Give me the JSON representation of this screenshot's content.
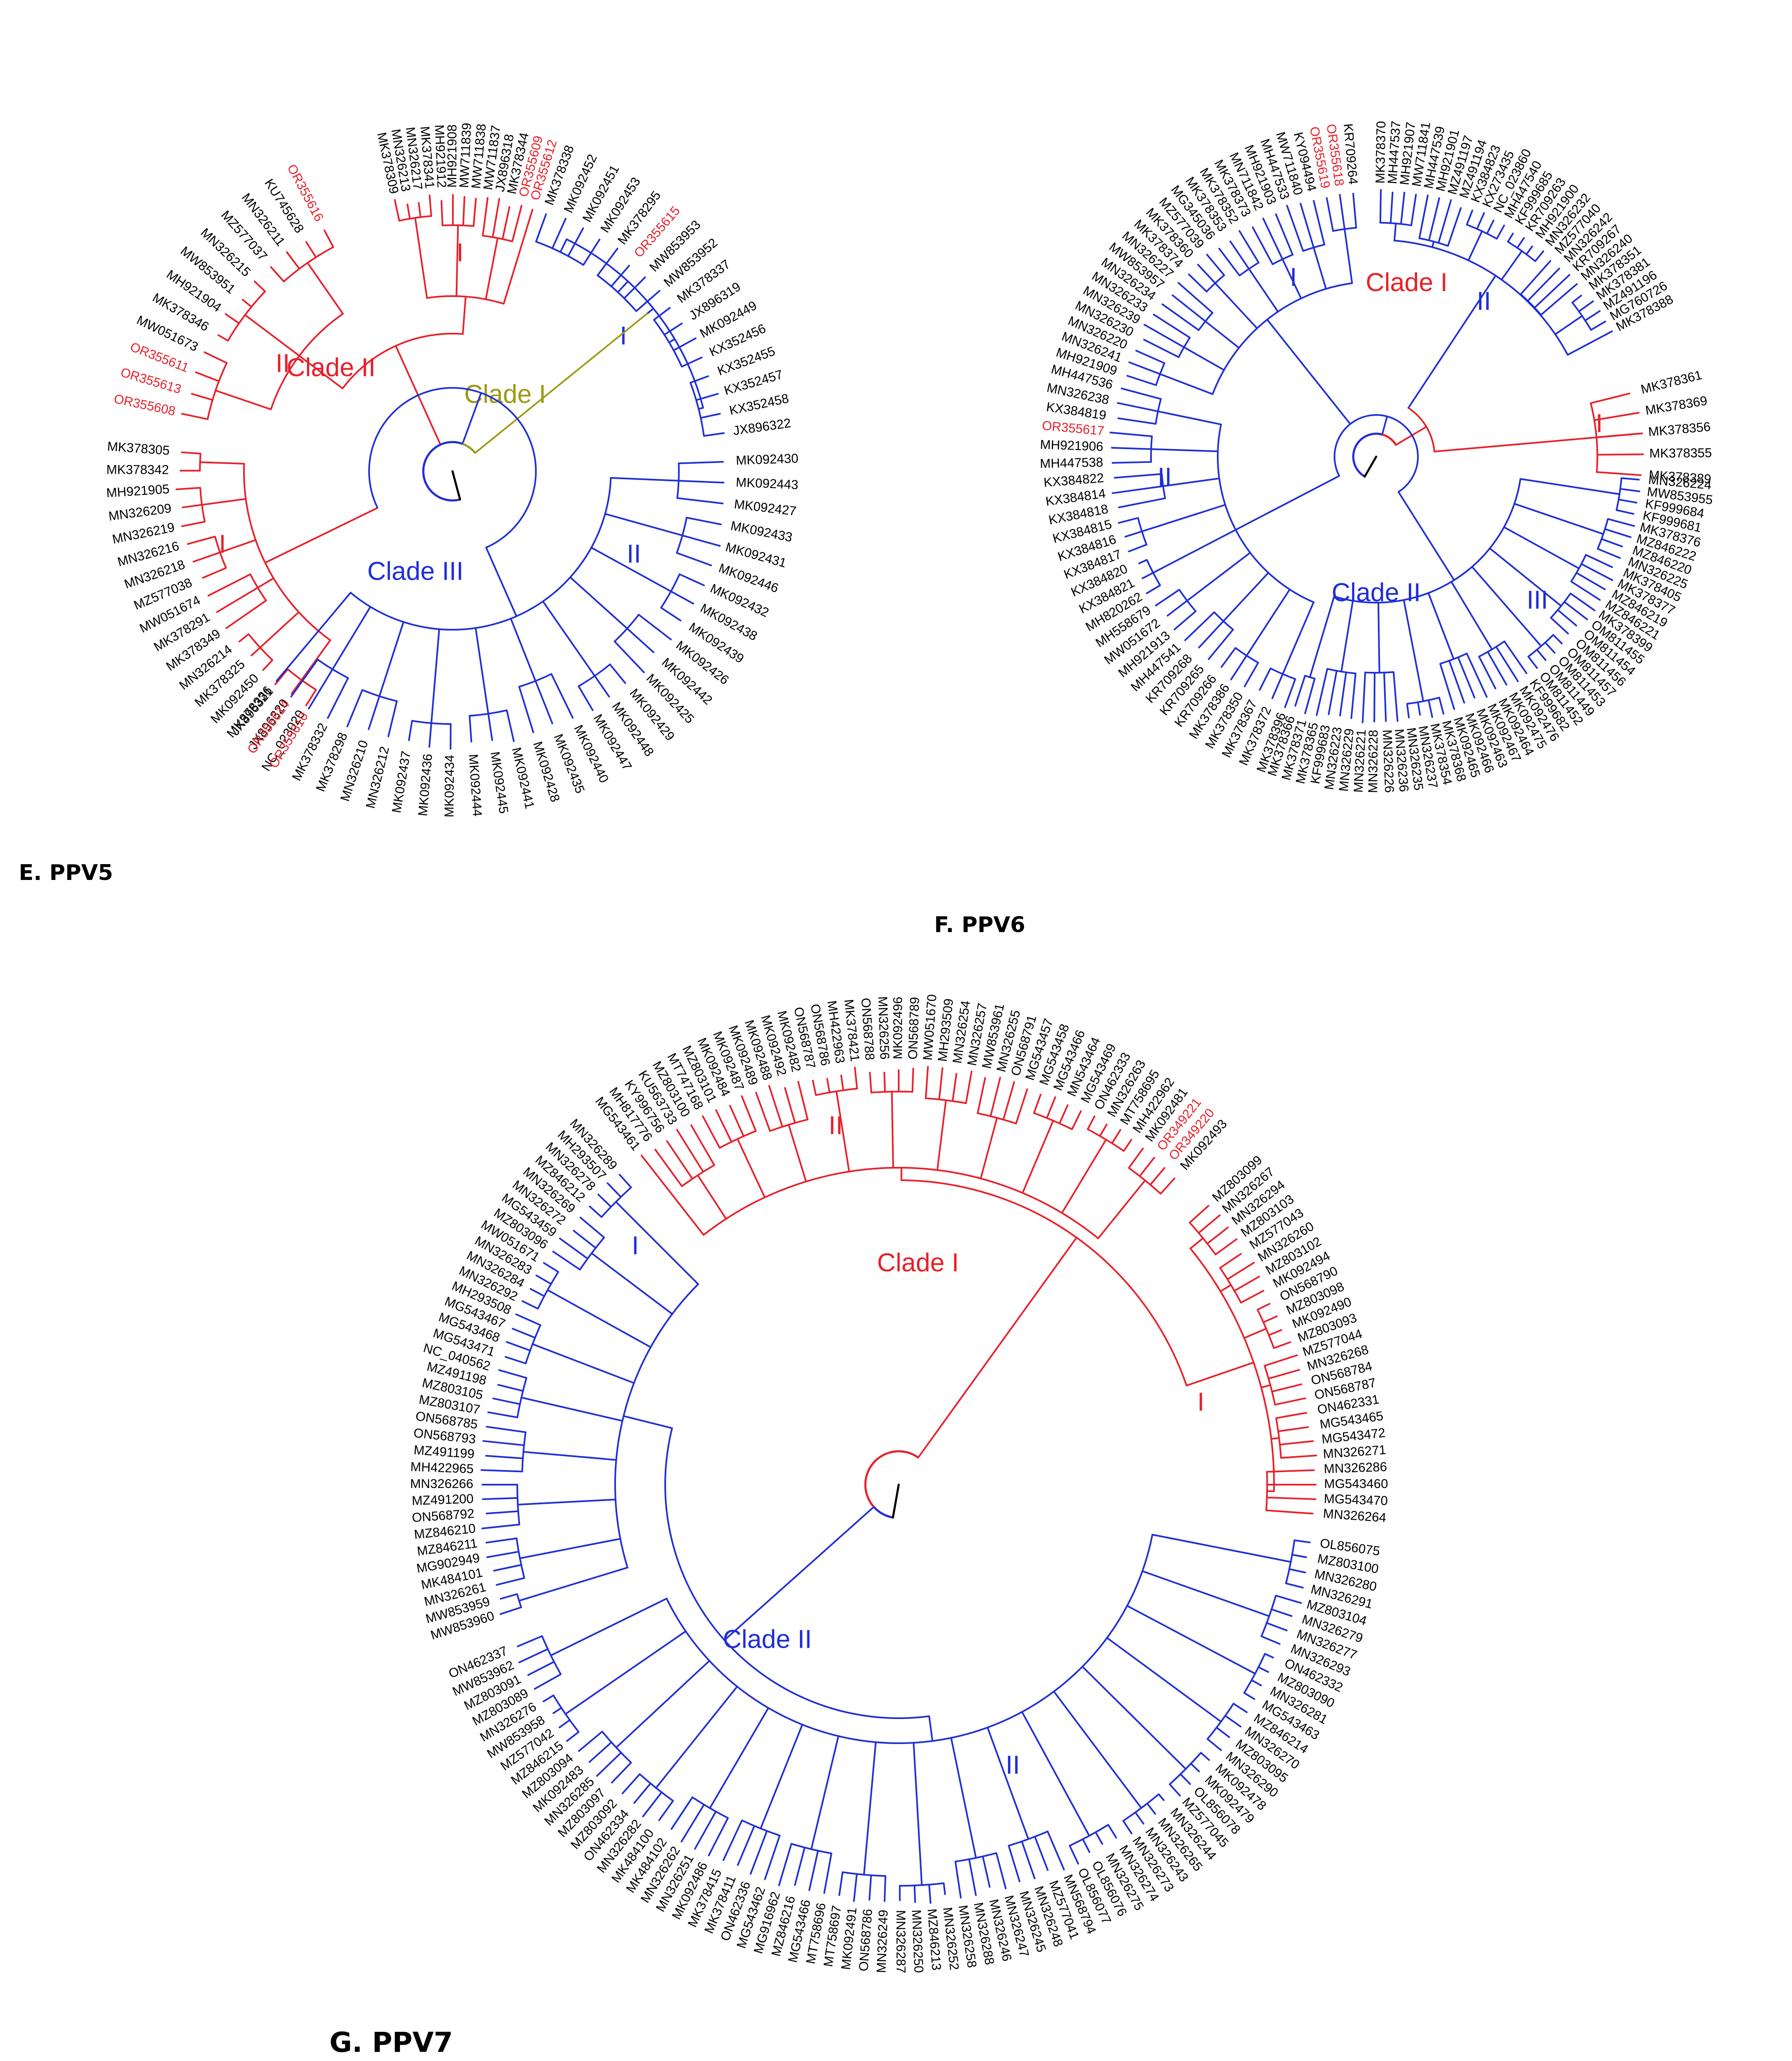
{
  "colors": {
    "red": "#e8202a",
    "blue": "#1f2fd6",
    "olive": "#9b9b12",
    "black": "#000000"
  },
  "panels": [
    {
      "id": "E",
      "title": "E. PPV5",
      "clades": [
        {
          "name": "Clade I",
          "color": "olive",
          "subclades": [
            {
              "name": "I",
              "color": "blue",
              "leaves": [
                "MK378338",
                "MK092452",
                "MK092451",
                "MK092453",
                "MK378295",
                "OR355615",
                "MW853953",
                "MW853952",
                "MK378337",
                "JX896319",
                "MK092449",
                "KX352456",
                "KX352455",
                "KX352457",
                "KX352458",
                "JX896322"
              ]
            }
          ]
        },
        {
          "name": "Clade II",
          "color": "red",
          "subclades": [
            {
              "name": "I",
              "color": "red",
              "leaves": [
                "MK378309",
                "MN326213",
                "MN326217",
                "MK378341",
                "MH921912",
                "MH921908",
                "MW711839",
                "MW711838",
                "MW711837",
                "JX896318",
                "MK378344",
                "OR355609",
                "OR355612"
              ]
            },
            {
              "name": "II",
              "color": "red",
              "leaves": [
                "OR355608",
                "OR355613",
                "OR355611",
                "MW051673",
                "MK378346",
                "MH921904",
                "MW853951",
                "MN326215",
                "MZ577037",
                "MN326211",
                "KU745628",
                "OR355616"
              ]
            }
          ]
        },
        {
          "name": "Clade III",
          "color": "blue",
          "subclades": [
            {
              "name": "I",
              "color": "red",
              "leaves": [
                "NC_023020",
                "JX896320",
                "JX896321",
                "MK092450",
                "MK378325",
                "MN326214",
                "MK378349",
                "MK378291",
                "MW051674",
                "MZ577038",
                "MN326218",
                "MN326216",
                "MN326219",
                "MN326209",
                "MH921905",
                "MK378342",
                "MK378305"
              ]
            },
            {
              "name": "II",
              "color": "blue",
              "leaves": [
                "MK092430",
                "MK092443",
                "MK092427",
                "MK092433",
                "MK092431",
                "MK092446",
                "MK092432",
                "MK092438",
                "MK092439",
                "MK092426",
                "MK092442",
                "MK092425",
                "MK092429",
                "MK092448",
                "MK092447",
                "MK092440",
                "MK092435",
                "MK092428",
                "MK092441",
                "MK092445",
                "MK092444",
                "MK092434",
                "MK092436",
                "MK092437",
                "MN326212",
                "MN326210",
                "MK378298",
                "MK378332",
                "OR355610",
                "OR355614",
                "MK378336"
              ]
            }
          ]
        }
      ],
      "red_leaves": [
        "OR355615",
        "OR355609",
        "OR355612",
        "OR355608",
        "OR355613",
        "OR355611",
        "OR355616",
        "OR355610",
        "OR355614"
      ]
    },
    {
      "id": "F",
      "title": "F. PPV6",
      "clades": [
        {
          "name": "Clade I",
          "color": "red",
          "subclades": [
            {
              "name": "I",
              "color": "red",
              "leaves": [
                "MK378361",
                "MK378369",
                "MK378356",
                "MK378355",
                "MK378389"
              ]
            },
            {
              "name": "II",
              "color": "blue",
              "leaves": [
                "MK378370",
                "MH447537",
                "MH921907",
                "MW711841",
                "MH447539",
                "MH921901",
                "MZ491197",
                "MZ491194",
                "KX384823",
                "KX273435",
                "NC_023860",
                "MH447540",
                "KF999685",
                "KR709263",
                "MH921900",
                "MN326232",
                "MZ577040",
                "MN326242",
                "KR709267",
                "MN326240",
                "MK378351",
                "MK378381",
                "MZ491196",
                "MG760726",
                "MK378388"
              ]
            }
          ]
        },
        {
          "name": "Clade II",
          "color": "blue",
          "subclades": [
            {
              "name": "I",
              "color": "blue",
              "leaves": [
                "KR709264",
                "OR355618",
                "OR355619",
                "KY094494",
                "MW711840",
                "MH447533",
                "MH921903",
                "MN711842",
                "MK378373",
                "MK378352",
                "MK378353",
                "MG345036",
                "MZ577039",
                "MK378360",
                "MK378374",
                "MN326227",
                "MW853957",
                "MN326234",
                "MN326233",
                "MN326239",
                "MN326230",
                "MN326220",
                "MN326241",
                "MH921909"
              ]
            },
            {
              "name": "II",
              "color": "blue",
              "leaves": [
                "MH447536",
                "MN326238",
                "KX384819",
                "OR355617",
                "MH921906",
                "MH447538",
                "KX384822",
                "KX384814",
                "KX384818",
                "KX384815",
                "KX384816",
                "KX384817",
                "KX384820",
                "KX384821",
                "MH820262",
                "MH558679",
                "MW051672",
                "MH921913",
                "MH447541",
                "KR709268",
                "KR709265",
                "KR709266",
                "MK378386",
                "MK378350",
                "MK378367",
                "MK378372",
                "MK378396"
              ]
            },
            {
              "name": "III",
              "color": "blue",
              "leaves": [
                "MN326224",
                "MW853955",
                "KF999684",
                "KF999681",
                "MK378376",
                "MZ846222",
                "MZ846220",
                "MN326225",
                "MK378405",
                "MK378377",
                "MZ846219",
                "MZ846221",
                "MK378399",
                "OM811455",
                "OM811454",
                "OM811456",
                "OM811457",
                "OM811453",
                "OM811449",
                "OM811452",
                "KF999682",
                "MK092476",
                "MK092475",
                "MK092464",
                "MK092467",
                "MK092463",
                "MK092466",
                "MK092465",
                "MK378368",
                "MK378354",
                "MN326237",
                "MN326235",
                "MN326236",
                "MN326226",
                "MN326228",
                "MN326221",
                "MN326229",
                "MN326223",
                "KF999683",
                "MK378365",
                "MK378371",
                "MK378366"
              ]
            }
          ]
        }
      ],
      "red_leaves": [
        "OR355618",
        "OR355619",
        "OR355617"
      ]
    },
    {
      "id": "G",
      "title": "G. PPV7",
      "clades": [
        {
          "name": "Clade I",
          "color": "red",
          "subclades": [
            {
              "name": "I",
              "color": "red",
              "leaves": [
                "MN326264",
                "MG543470",
                "MG543460",
                "MN326286",
                "MN326271",
                "MG543472",
                "MG543465",
                "ON462331",
                "ON568787",
                "ON568784",
                "MN326268",
                "MZ577044",
                "MZ803093",
                "MK092490",
                "MZ803098",
                "ON568790",
                "MK092494",
                "MZ803102",
                "MN326260",
                "MZ577043",
                "MZ803103",
                "MN326294",
                "MN326267",
                "MZ803099"
              ]
            },
            {
              "name": "II",
              "color": "red",
              "leaves": [
                "MK092493",
                "OR349220",
                "OR349221",
                "MK092481",
                "MH422962",
                "MT758695",
                "MN326263",
                "ON462333",
                "MG543469",
                "MN543464",
                "MG543466",
                "MG543458",
                "MG543457",
                "ON568791",
                "MN326255",
                "MW853961",
                "MN326257",
                "MN326254",
                "MH293509",
                "MW051670",
                "ON568789",
                "MK092496",
                "MN326256",
                "ON568788",
                "MK378421",
                "MH422963",
                "ON568786",
                "ON568787",
                "MK092482",
                "MK092492",
                "MK092488",
                "MK092489",
                "MK092487",
                "MK092484",
                "MZ803101",
                "MT747168",
                "MZ803100",
                "KU563733",
                "KY996756",
                "MH817776",
                "MG543461"
              ]
            }
          ]
        },
        {
          "name": "Clade II",
          "color": "blue",
          "subclades": [
            {
              "name": "I",
              "color": "blue",
              "leaves": [
                "MN326289",
                "MH293507",
                "MN326278",
                "MZ846212",
                "MN326269",
                "MN326272",
                "MG543459",
                "MZ803096",
                "MW051671",
                "MN326283",
                "MN326284",
                "MN326292",
                "MH293508",
                "MG543467",
                "MG543468",
                "MG543471",
                "NC_040562",
                "MZ491198",
                "MZ803105",
                "MZ803107",
                "ON568785",
                "ON568793",
                "MZ491199",
                "MH422965",
                "MN326266",
                "MZ491200",
                "ON568792",
                "MZ846210",
                "MZ846211",
                "MG902949",
                "MK484101",
                "MN326261",
                "MW853959",
                "MW853960"
              ]
            },
            {
              "name": "II",
              "color": "blue",
              "leaves": [
                "ON462337",
                "MW853962",
                "MZ803091",
                "MZ803089",
                "MN326276",
                "MW853958",
                "MZ577042",
                "MZ846215",
                "MZ803094",
                "MK092483",
                "MN326285",
                "MZ803097",
                "MZ803092",
                "ON462334",
                "MN326282",
                "MK484100",
                "MK484102",
                "MN326262",
                "MN326251",
                "MK092486",
                "MK378415",
                "MK378411",
                "ON462336",
                "MG543462",
                "MG916962",
                "MZ846216",
                "MG543466",
                "MT758696",
                "MT758697",
                "MK092491",
                "ON568786",
                "MN326249",
                "MN326287",
                "MN326250",
                "MZ846213",
                "MN326252",
                "MN326258",
                "MN326288",
                "MN326246",
                "MN326247",
                "MN326245",
                "MN326248",
                "MZ577041",
                "MN568794",
                "OL856077",
                "OL856076",
                "MN326275",
                "MN326274",
                "MN326273",
                "MN326243",
                "MN326265",
                "MN326244",
                "MZ577045",
                "OL856078",
                "MK092479",
                "MK092478",
                "MN326290",
                "MZ803095",
                "MN326270",
                "MZ846214",
                "MG543463",
                "MN326281",
                "MZ803090",
                "ON462332",
                "MN326293",
                "MN326277",
                "MN326279",
                "MZ803104",
                "MN326291",
                "MN326280",
                "MZ803100",
                "OL856075"
              ]
            }
          ]
        }
      ],
      "red_leaves": [
        "OR349220",
        "OR349221"
      ]
    }
  ]
}
